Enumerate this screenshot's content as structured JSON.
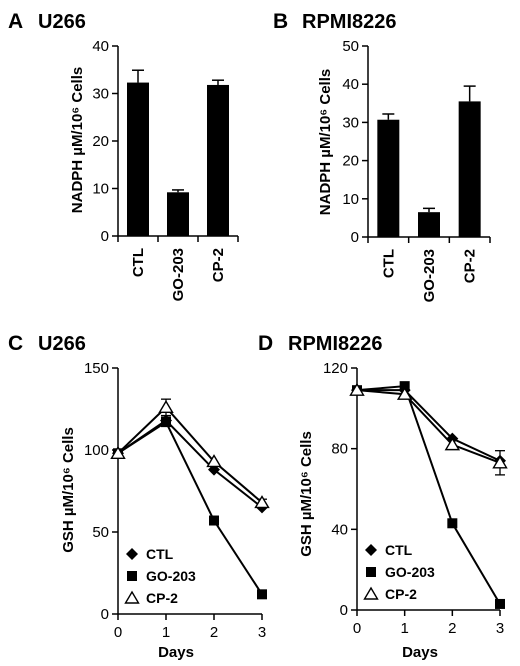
{
  "chart_data": [
    {
      "panel": "A",
      "title": "U266",
      "type": "bar",
      "ylabel": "NADPH µM/10⁶ Cells",
      "categories": [
        "CTL",
        "GO-203",
        "CP-2"
      ],
      "values": [
        32.3,
        9.2,
        31.8
      ],
      "errors": [
        2.6,
        0.5,
        1.0
      ],
      "ylim": [
        0,
        40
      ],
      "yticks": [
        0,
        10,
        20,
        30,
        40
      ]
    },
    {
      "panel": "B",
      "title": "RPMI8226",
      "type": "bar",
      "ylabel": "NADPH µM/10⁶ Cells",
      "categories": [
        "CTL",
        "GO-203",
        "CP-2"
      ],
      "values": [
        30.7,
        6.5,
        35.5
      ],
      "errors": [
        1.5,
        1.0,
        4.0
      ],
      "ylim": [
        0,
        50
      ],
      "yticks": [
        0,
        10,
        20,
        30,
        40,
        50
      ]
    },
    {
      "panel": "C",
      "title": "U266",
      "type": "line",
      "xlabel": "Days",
      "ylabel": "GSH µM/10⁶ Cells",
      "x": [
        0,
        1,
        2,
        3
      ],
      "xlim": [
        0,
        3
      ],
      "xticks": [
        0,
        1,
        2,
        3
      ],
      "ylim": [
        0,
        150
      ],
      "yticks": [
        0,
        50,
        100,
        150
      ],
      "legend_position": "bottom-left",
      "series": [
        {
          "name": "CTL",
          "marker": "diamond",
          "values": [
            98,
            118,
            88,
            65
          ],
          "errors": [
            0,
            2,
            0,
            0
          ]
        },
        {
          "name": "GO-203",
          "marker": "square",
          "values": [
            98,
            117,
            57,
            12
          ],
          "errors": [
            0,
            0,
            0,
            0
          ]
        },
        {
          "name": "CP-2",
          "marker": "triangle",
          "values": [
            98,
            126,
            93,
            68
          ],
          "errors": [
            0,
            5,
            0,
            2
          ]
        }
      ]
    },
    {
      "panel": "D",
      "title": "RPMI8226",
      "type": "line",
      "xlabel": "Days",
      "ylabel": "GSH µM/10⁶ Cells",
      "x": [
        0,
        1,
        2,
        3
      ],
      "xlim": [
        0,
        3
      ],
      "xticks": [
        0,
        1,
        2,
        3
      ],
      "ylim": [
        0,
        120
      ],
      "yticks": [
        0,
        40,
        80,
        120
      ],
      "legend_position": "bottom-left",
      "series": [
        {
          "name": "CTL",
          "marker": "diamond",
          "values": [
            109,
            109,
            85,
            74
          ],
          "errors": [
            0,
            0,
            0,
            0
          ]
        },
        {
          "name": "GO-203",
          "marker": "square",
          "values": [
            109,
            111,
            43,
            3
          ],
          "errors": [
            0,
            0,
            0,
            0
          ]
        },
        {
          "name": "CP-2",
          "marker": "triangle",
          "values": [
            109,
            107,
            82,
            73
          ],
          "errors": [
            0,
            0,
            0,
            6
          ]
        }
      ]
    }
  ]
}
